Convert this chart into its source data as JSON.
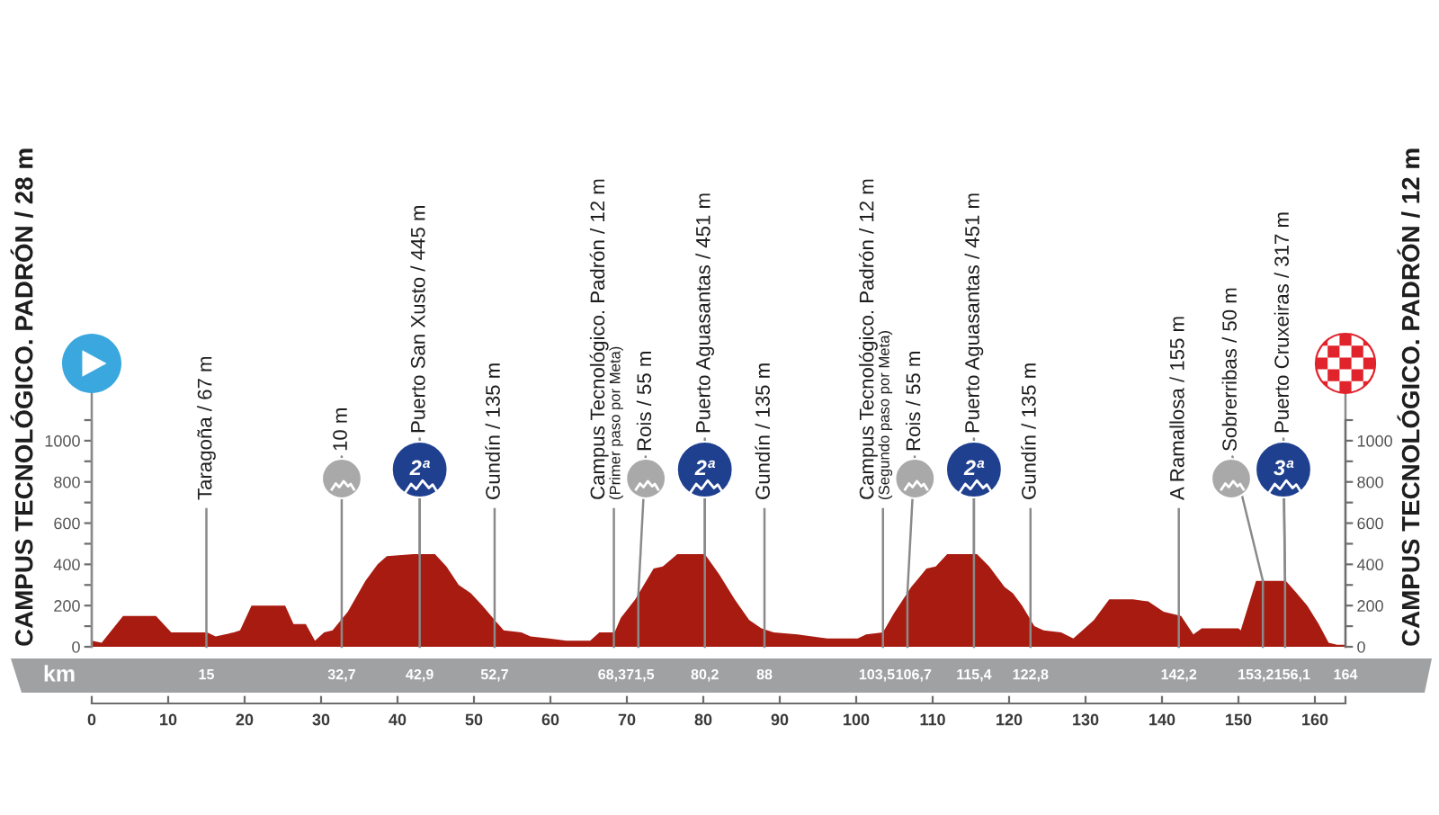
{
  "chart_data": {
    "type": "area",
    "x": [
      0,
      1.3,
      4.1,
      8.4,
      10.4,
      15.1,
      16.2,
      18.6,
      19.4,
      20.9,
      25.3,
      26.4,
      28,
      29.2,
      30.4,
      31.5,
      33.5,
      35.8,
      37.4,
      38.6,
      42.1,
      44.9,
      46.4,
      48,
      49.6,
      51.1,
      52.7,
      53.9,
      56.2,
      57.4,
      59.8,
      62.1,
      65.2,
      66.4,
      68.4,
      69.2,
      71.1,
      73.5,
      74.7,
      76.6,
      80.2,
      82.1,
      84.1,
      86,
      87.6,
      89.2,
      92.3,
      96.2,
      100.2,
      101.3,
      103.5,
      104.9,
      107.2,
      109.2,
      110.4,
      111.9,
      115.8,
      117.4,
      119.4,
      120.5,
      121.7,
      123.3,
      124.5,
      126.8,
      128.4,
      129.6,
      131.1,
      133.1,
      136.2,
      138.2,
      140.2,
      142.5,
      144.1,
      145.2,
      150,
      150.3,
      152.3,
      156.2,
      157.4,
      159,
      160.5,
      161.8,
      162.9,
      164
    ],
    "values": [
      30,
      20,
      150,
      150,
      70,
      70,
      50,
      70,
      80,
      200,
      200,
      110,
      110,
      30,
      70,
      80,
      170,
      320,
      400,
      440,
      450,
      450,
      390,
      300,
      260,
      200,
      130,
      80,
      70,
      50,
      40,
      30,
      30,
      70,
      70,
      140,
      230,
      380,
      390,
      450,
      450,
      350,
      230,
      130,
      90,
      70,
      60,
      40,
      40,
      60,
      70,
      160,
      290,
      380,
      390,
      450,
      450,
      390,
      290,
      260,
      200,
      100,
      80,
      70,
      40,
      80,
      130,
      230,
      230,
      220,
      170,
      150,
      60,
      90,
      90,
      80,
      320,
      320,
      270,
      200,
      110,
      20,
      10,
      10
    ],
    "color": "#a81b10",
    "xlim": [
      0,
      164
    ],
    "xticks": [
      0,
      10,
      20,
      30,
      40,
      50,
      60,
      70,
      80,
      90,
      100,
      110,
      120,
      130,
      140,
      150,
      160,
      {
        "value": 164,
        "label": null
      }
    ],
    "x2lim": [
      0,
      164
    ],
    "x2label": "km",
    "x2ticks": [
      15,
      {
        "value": 32.7,
        "label": "32,7"
      },
      {
        "value": 42.9,
        "label": "42,9"
      },
      {
        "value": 52.7,
        "label": "52,7"
      },
      {
        "value": 68.3,
        "label": "68,3"
      },
      {
        "value": 71.5,
        "label": "71,5"
      },
      {
        "value": 80.2,
        "label": "80,2"
      },
      88,
      {
        "value": 103.5,
        "label": "103,5"
      },
      {
        "value": 106.7,
        "label": "106,7"
      },
      {
        "value": 115.4,
        "label": "115,4"
      },
      {
        "value": 122.8,
        "label": "122,8"
      },
      {
        "value": 142.2,
        "label": "142,2"
      },
      {
        "value": 153.2,
        "label": "153,2"
      },
      {
        "value": 156.1,
        "label": "156,1"
      },
      164
    ],
    "ylim": [
      0,
      1100
    ],
    "yticks": [
      0,
      {
        "value": 100,
        "label": null
      },
      200,
      {
        "value": 300,
        "label": null
      },
      400,
      {
        "value": 500,
        "label": null
      },
      600,
      {
        "value": 700,
        "label": null
      },
      800,
      {
        "value": 900,
        "label": null
      },
      1000,
      {
        "value": 1100,
        "label": null
      }
    ],
    "y2lim": [
      0,
      1100
    ],
    "y2ticks": [
      0,
      {
        "value": 100,
        "label": null
      },
      200,
      {
        "value": 300,
        "label": null
      },
      400,
      {
        "value": 500,
        "label": null
      },
      600,
      {
        "value": 700,
        "label": null
      },
      800,
      {
        "value": 900,
        "label": null
      },
      1000,
      {
        "value": 1100,
        "label": null
      }
    ],
    "ylabel": "CAMPUS TECNOLÓGICO. PADRÓN / 28 m",
    "y2label": "CAMPUS TECNOLÓGICO. PADRÓN / 12 m",
    "ref_lines": [
      {
        "axis": "x",
        "value": 0
      },
      {
        "axis": "x",
        "value": 15,
        "label": "Taragoña / 67 m"
      },
      {
        "axis": "x",
        "value": 32.7
      },
      {
        "axis": "x",
        "value": 42.9
      },
      {
        "axis": "x",
        "value": 52.7,
        "label": "Gundín / 135 m"
      },
      {
        "axis": "x",
        "value": 68.3,
        "label": "Campus Tecnológico. Padrón / 12 m\n(Primer paso por Meta)"
      },
      {
        "axis": "x",
        "value": 71.5
      },
      {
        "axis": "x",
        "value": 80.2
      },
      {
        "axis": "x",
        "value": 88,
        "label": "Gundín / 135 m"
      },
      {
        "axis": "x",
        "value": 103.5,
        "label": "Campus Tecnológico. Padrón / 12 m\n(Segundo paso por Meta)"
      },
      {
        "axis": "x",
        "value": 106.7
      },
      {
        "axis": "x",
        "value": 115.4
      },
      {
        "axis": "x",
        "value": 122.8,
        "label": "Gundín / 135 m"
      },
      {
        "axis": "x",
        "value": 142.2,
        "label": "A Ramallosa / 155 m"
      },
      {
        "axis": "x",
        "value": 153.2
      },
      {
        "axis": "x",
        "value": 156.1
      },
      {
        "axis": "x",
        "value": 164
      }
    ],
    "annotations": [
      {
        "text": "10 m",
        "x": 32.7,
        "y": 130
      },
      {
        "text": "Puerto San Xusto / 445 m",
        "x": 42.9,
        "y": 450
      },
      {
        "text": "2ª",
        "x": 42.9,
        "y": 450
      },
      {
        "text": "Rois / 55 m",
        "x": 71.5,
        "y": 250
      },
      {
        "text": "Puerto Aguasantas / 451 m",
        "x": 80.2,
        "y": 450
      },
      {
        "text": "2ª",
        "x": 80.2,
        "y": 450
      },
      {
        "text": "Rois / 55 m",
        "x": 106.7,
        "y": 260
      },
      {
        "text": "Puerto Aguasantas / 451 m",
        "x": 115.4,
        "y": 450
      },
      {
        "text": "2ª",
        "x": 115.4,
        "y": 450
      },
      {
        "text": "Sobrerribas / 50 m",
        "x": 153.2,
        "y": 320
      },
      {
        "text": "Puerto Cruxeiras / 317 m",
        "x": 156.1,
        "y": 320
      },
      {
        "text": "3ª",
        "x": 156.1,
        "y": 320
      }
    ]
  }
}
